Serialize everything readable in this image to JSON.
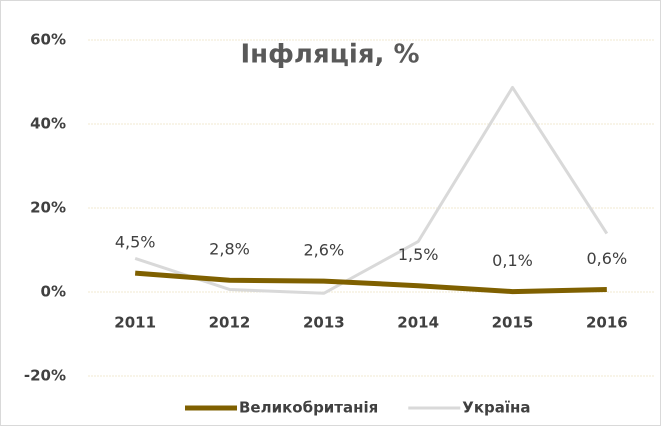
{
  "chart_data": {
    "type": "line",
    "title": "Інфляція, %",
    "categories": [
      "2011",
      "2012",
      "2013",
      "2014",
      "2015",
      "2016"
    ],
    "series": [
      {
        "name": "Великобританія",
        "color": "#7f6000",
        "values": [
          4.5,
          2.8,
          2.6,
          1.5,
          0.1,
          0.6
        ],
        "value_labels": [
          "4,5%",
          "2,8%",
          "2,6%",
          "1,5%",
          "0,1%",
          "0,6%"
        ]
      },
      {
        "name": "Україна",
        "color": "#d9d9d9",
        "values": [
          8,
          0.6,
          -0.3,
          12,
          48.7,
          13.9
        ]
      }
    ],
    "ylim": [
      -30,
      60
    ],
    "yticks": [
      {
        "value": -20,
        "label": "-20%"
      },
      {
        "value": 0,
        "label": "0%"
      },
      {
        "value": 20,
        "label": "20%"
      },
      {
        "value": 40,
        "label": "40%"
      },
      {
        "value": 60,
        "label": "60%"
      }
    ],
    "grid": true,
    "legend": "bottom"
  }
}
